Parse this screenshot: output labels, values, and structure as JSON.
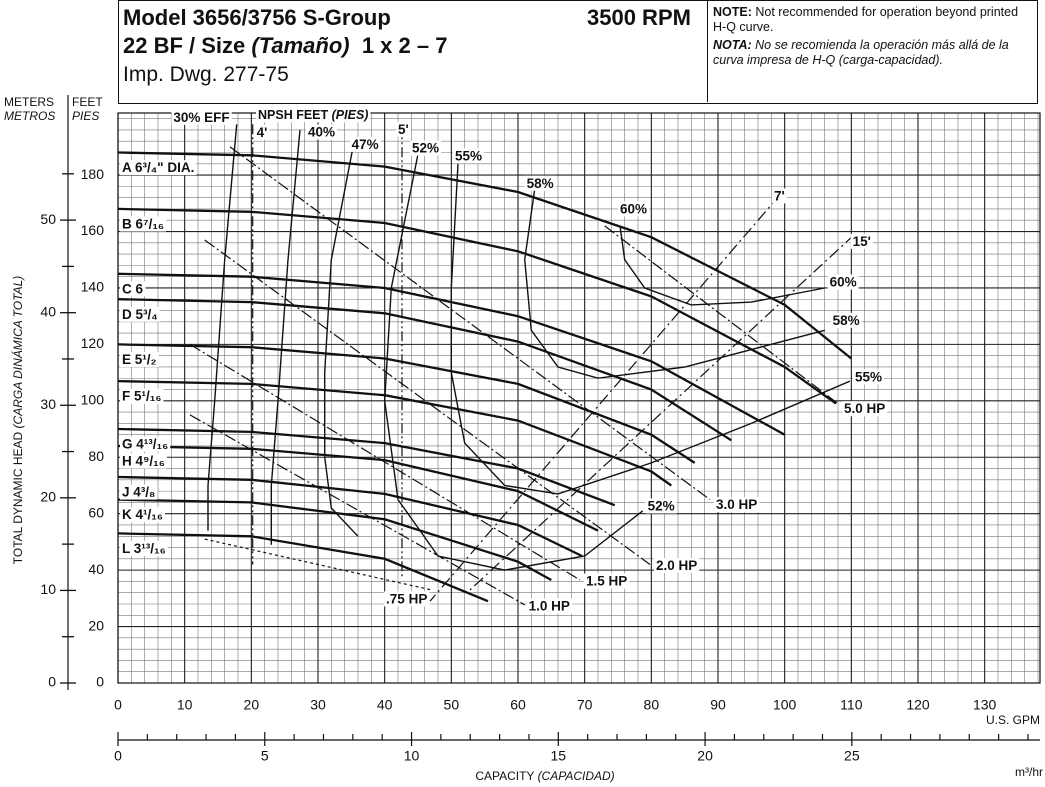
{
  "chart_data": {
    "type": "line",
    "header": {
      "title": "Model 3656/3756 S-Group",
      "speed": "3500 RPM",
      "size": "22 BF / Size",
      "size_es": "(Tamaño)",
      "size_value": "1 x 2 – 7",
      "drawing": "Imp. Dwg. 277-75"
    },
    "note": {
      "label": "NOTE:",
      "text": "Not recommended for operation beyond printed H-Q curve.",
      "label_es": "NOTA:",
      "text_es": "No se recomienda la operación más allá de la curva impresa de H-Q (carga-capacidad)."
    },
    "y_label": "TOTAL DYNAMIC HEAD",
    "y_label_es": "(CARGA DINÁMICA TOTAL)",
    "y_unit": "FEET",
    "y_unit_es": "PIES",
    "y2_unit": "METERS",
    "y2_unit_es": "METROS",
    "x_label": "CAPACITY",
    "x_label_es": "(CAPACIDAD)",
    "x_unit": "U.S. GPM",
    "x2_unit": "m³/hr",
    "xlim": [
      0,
      138.3
    ],
    "xticks": [
      0,
      10,
      20,
      30,
      40,
      50,
      60,
      70,
      80,
      90,
      100,
      110,
      120,
      130
    ],
    "x2lim": [
      0,
      31.41
    ],
    "x2ticks": [
      0,
      5,
      10,
      15,
      20,
      25
    ],
    "x2minor": [
      1,
      2,
      3,
      4,
      6,
      7,
      8,
      9,
      11,
      12,
      13,
      14,
      16,
      17,
      18,
      19,
      21,
      22,
      23,
      24,
      26,
      27,
      28,
      29,
      30,
      31
    ],
    "ylim": [
      0,
      202
    ],
    "yticks": [
      0,
      20,
      40,
      60,
      80,
      100,
      120,
      140,
      160,
      180
    ],
    "y2lim": [
      0,
      61.57
    ],
    "y2ticks": [
      0,
      10,
      20,
      30,
      40,
      50
    ],
    "y2minor": [
      5,
      15,
      25,
      35,
      45,
      55
    ],
    "grid": true,
    "series": [
      {
        "name": "A 6³/₄\" DIA.",
        "x": [
          0,
          20,
          40,
          60,
          80,
          100,
          110
        ],
        "values": [
          188,
          187,
          183,
          174,
          158,
          134,
          115
        ]
      },
      {
        "name": "B 6⁷/₁₆",
        "x": [
          0,
          20,
          40,
          60,
          80,
          100,
          107.7
        ],
        "values": [
          168,
          167,
          163,
          153,
          137,
          112,
          99
        ]
      },
      {
        "name": "C 6",
        "x": [
          0,
          20,
          40,
          60,
          80,
          100
        ],
        "values": [
          145,
          144,
          140,
          130,
          114,
          88
        ]
      },
      {
        "name": "D 5³/₄",
        "x": [
          0,
          20,
          40,
          60,
          80,
          92
        ],
        "values": [
          136,
          135,
          131,
          121,
          104,
          86
        ]
      },
      {
        "name": "E 5¹/₂",
        "x": [
          0,
          20,
          40,
          60,
          80,
          86.5
        ],
        "values": [
          120,
          119,
          115,
          106,
          88,
          78
        ]
      },
      {
        "name": "F 5¹/₁₆",
        "x": [
          0,
          20,
          40,
          60,
          80,
          83
        ],
        "values": [
          107,
          106,
          102,
          93,
          75,
          70
        ]
      },
      {
        "name": "G 4¹³/₁₆",
        "x": [
          0,
          20,
          40,
          60,
          74.5
        ],
        "values": [
          90,
          89,
          85,
          76,
          63
        ]
      },
      {
        "name": "H 4⁹/₁₆",
        "x": [
          0,
          20,
          40,
          60,
          72
        ],
        "values": [
          84,
          83,
          79,
          68,
          54
        ]
      },
      {
        "name": "J 4³/₈",
        "x": [
          0,
          20,
          40,
          60,
          69.6
        ],
        "values": [
          73,
          72,
          67,
          56,
          45
        ]
      },
      {
        "name": "K 4¹/₁₆",
        "x": [
          0,
          20,
          40,
          60,
          65
        ],
        "values": [
          65,
          64,
          58,
          43,
          36.5
        ]
      },
      {
        "name": "L 3¹³/₁₆",
        "x": [
          0,
          20,
          40,
          55.5
        ],
        "values": [
          53,
          52,
          44,
          29
        ]
      }
    ],
    "efficiency_curves": [
      {
        "name": "30% EFF",
        "x": [
          17.8,
          16,
          14.5,
          13.5,
          13.5
        ],
        "values": [
          198,
          150,
          100,
          70,
          54
        ]
      },
      {
        "name": "40%",
        "x": [
          27.3,
          25.5,
          24,
          23,
          23
        ],
        "values": [
          196,
          150,
          100,
          70,
          49
        ]
      },
      {
        "name": "47%",
        "x": [
          35.5,
          32,
          31,
          31,
          32,
          36
        ],
        "values": [
          193,
          150,
          110,
          80,
          62,
          52
        ]
      },
      {
        "name": "52%",
        "x": [
          45.3,
          41,
          40,
          42,
          48,
          58,
          70,
          78.7
        ],
        "values": [
          191,
          140,
          100,
          65,
          45,
          40,
          45,
          61
        ]
      },
      {
        "name": "55%",
        "x": [
          51,
          50,
          50,
          52,
          58,
          66,
          80,
          95,
          109.8
        ],
        "values": [
          184,
          140,
          110,
          85,
          70,
          67,
          78,
          92,
          107
        ]
      },
      {
        "name": "58%",
        "x": [
          62.5,
          61,
          62,
          66,
          72,
          85,
          106
        ],
        "values": [
          175,
          150,
          125,
          112,
          108,
          112,
          125
        ]
      },
      {
        "name": "60%",
        "x": [
          75.3,
          76,
          79,
          86,
          95,
          106
        ],
        "values": [
          162,
          150,
          140,
          134,
          135,
          140
        ]
      }
    ],
    "power_lines": [
      {
        "name": "5.0 HP",
        "x": [
          73,
          108
        ],
        "values": [
          162,
          99
        ]
      },
      {
        "name": "3.0 HP",
        "x": [
          16.8,
          88.8
        ],
        "values": [
          190,
          65
        ]
      },
      {
        "name": "2.0 HP",
        "x": [
          13,
          79.8
        ],
        "values": [
          157,
          42
        ]
      },
      {
        "name": "1.5 HP",
        "x": [
          10.8,
          69.3
        ],
        "values": [
          120,
          36.5
        ]
      },
      {
        "name": "1.0 HP",
        "x": [
          10.8,
          61
        ],
        "values": [
          95,
          27.7
        ]
      },
      {
        "name": ".75 HP",
        "x": [
          13,
          47
        ],
        "values": [
          51,
          33
        ]
      }
    ],
    "npsh_title": "NPSH FEET",
    "npsh_title_es": "(PIES)",
    "npsh_lines": [
      {
        "name": "4'",
        "x": [
          20.2,
          20.2
        ],
        "values": [
          198,
          42
        ]
      },
      {
        "name": "5'",
        "x": [
          42.6,
          42.6
        ],
        "values": [
          198,
          37
        ]
      },
      {
        "name": "7'",
        "x": [
          99.3,
          46.8
        ],
        "values": [
          173,
          29
        ]
      },
      {
        "name": "15'",
        "x": [
          110.5,
          52.8
        ],
        "values": [
          159,
          33
        ]
      }
    ]
  }
}
